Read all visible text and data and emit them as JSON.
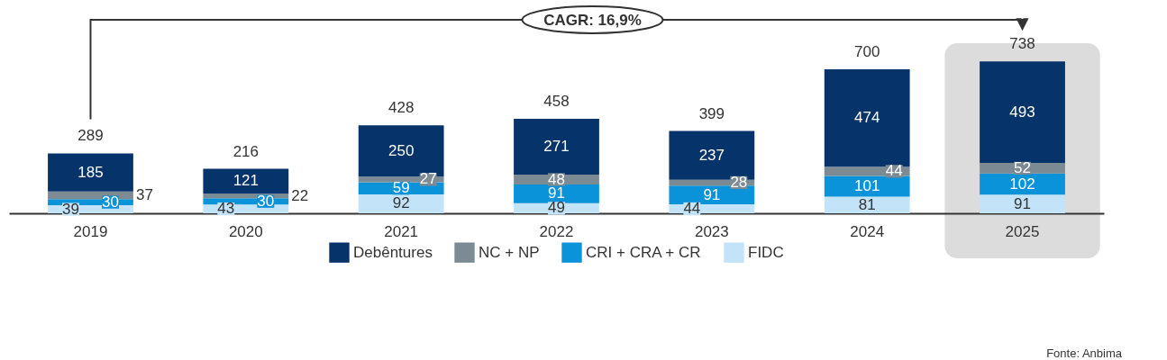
{
  "chart_data": {
    "type": "bar",
    "stacked": true,
    "data_labels": true,
    "legend": "bottom",
    "grid": false,
    "categories": [
      "2019",
      "2020",
      "2021",
      "2022",
      "2023",
      "2024",
      "2025"
    ],
    "series": [
      {
        "name": "FIDC",
        "color": "#c3e4f8",
        "values": [
          39,
          43,
          92,
          49,
          44,
          81,
          91
        ]
      },
      {
        "name": "CRI + CRA + CR",
        "color": "#0a93d8",
        "values": [
          30,
          30,
          59,
          91,
          91,
          101,
          102
        ]
      },
      {
        "name": "NC + NP",
        "color": "#7c8a94",
        "values": [
          37,
          22,
          27,
          48,
          28,
          44,
          52
        ]
      },
      {
        "name": "Debêntures",
        "color": "#06336a",
        "values": [
          185,
          121,
          250,
          271,
          237,
          474,
          493
        ]
      }
    ],
    "totals": [
      "289",
      "216",
      "428",
      "458",
      "399",
      "700",
      "738"
    ],
    "annotations": [
      "CAGR: 16,9%",
      "Fonte: Anbima"
    ]
  }
}
